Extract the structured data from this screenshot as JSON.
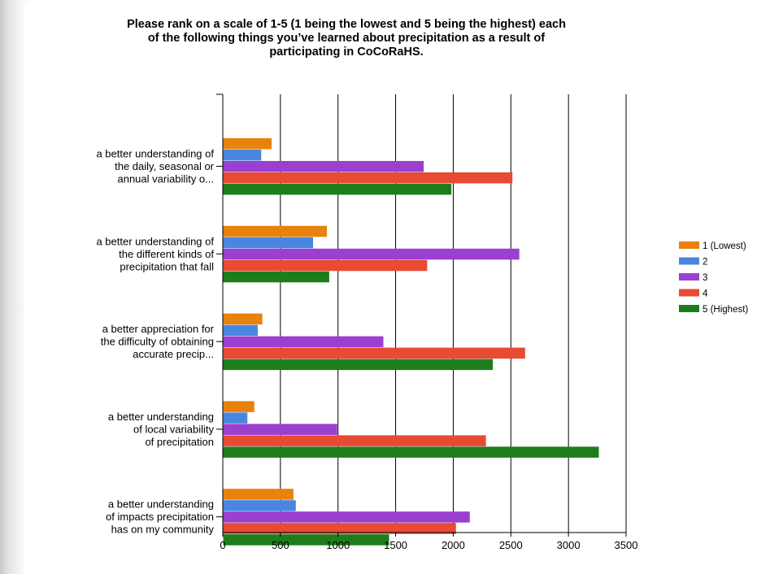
{
  "chart_data": {
    "type": "bar",
    "orientation": "horizontal",
    "title": "Please rank on a scale of 1-5 (1 being the lowest and 5 being the highest) each\nof the following things you’ve learned about precipitation as a result of\nparticipating in CoCoRaHS.",
    "categories": [
      [
        "a better understanding of",
        "the daily, seasonal or",
        "annual variability o..."
      ],
      [
        "a better understanding of",
        "the different kinds of",
        "precipitation that fall"
      ],
      [
        "a better appreciation for",
        "the difficulty of obtaining",
        "accurate precip..."
      ],
      [
        "a better understanding",
        "of local variability",
        "of precipitation"
      ],
      [
        "a better understanding",
        "of impacts precipitation",
        "has on my community"
      ]
    ],
    "series": [
      {
        "name": "1 (Lowest)",
        "color": "#e8820c",
        "values": [
          420,
          900,
          340,
          270,
          610
        ]
      },
      {
        "name": "2",
        "color": "#4a86e0",
        "values": [
          330,
          780,
          300,
          210,
          630
        ]
      },
      {
        "name": "3",
        "color": "#9b3fd1",
        "values": [
          1740,
          2570,
          1390,
          990,
          2140
        ]
      },
      {
        "name": "4",
        "color": "#e84a33",
        "values": [
          2510,
          1770,
          2620,
          2280,
          2020
        ]
      },
      {
        "name": "5 (Highest)",
        "color": "#1d7d1d",
        "values": [
          1980,
          920,
          2340,
          3260,
          1440
        ]
      }
    ],
    "xlim": [
      0,
      3500
    ],
    "xticks": [
      0,
      500,
      1000,
      1500,
      2000,
      2500,
      3000,
      3500
    ],
    "grid": true,
    "legend": "right"
  }
}
